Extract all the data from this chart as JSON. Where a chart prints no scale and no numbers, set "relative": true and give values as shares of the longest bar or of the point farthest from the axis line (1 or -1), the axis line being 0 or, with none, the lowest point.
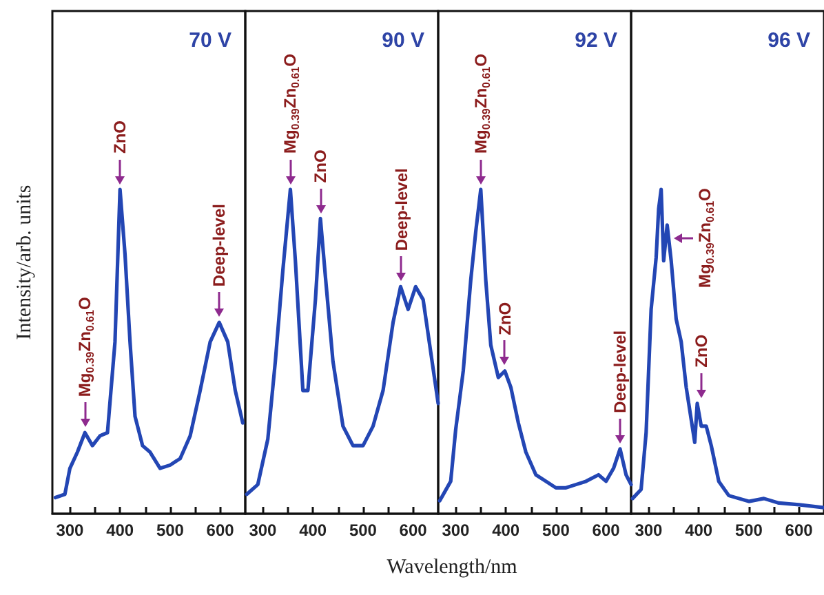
{
  "chart_data": [
    {
      "type": "line",
      "title": "70 V",
      "ylabel": "Intensity/arb. units",
      "relative": true,
      "marker": "none",
      "line_style": "solid",
      "xlim": [
        265,
        650
      ],
      "xticks": [
        300,
        {
          "value": 350,
          "label": null
        },
        400,
        {
          "value": 450,
          "label": null
        },
        500,
        {
          "value": 550,
          "label": null
        },
        600
      ],
      "x": [
        271,
        290,
        300,
        315,
        330,
        345,
        360,
        375,
        390,
        400,
        410,
        420,
        430,
        445,
        460,
        480,
        500,
        520,
        540,
        560,
        580,
        598,
        615,
        630,
        645
      ],
      "series": [
        {
          "color": "#2346b4",
          "values": [
            0.05,
            0.06,
            0.14,
            0.19,
            0.25,
            0.21,
            0.24,
            0.25,
            0.53,
            1,
            0.8,
            0.53,
            0.3,
            0.21,
            0.19,
            0.14,
            0.15,
            0.17,
            0.24,
            0.38,
            0.53,
            0.59,
            0.53,
            0.38,
            0.28
          ]
        }
      ],
      "annotations": [
        {
          "text": "Mg$_{0.39}$Zn$_{0.61}$O",
          "x": 330,
          "y": 0.25
        },
        {
          "text": "ZnO",
          "x": 400,
          "y": 1
        },
        {
          "text": "Deep-level",
          "x": 598,
          "y": 0.59
        }
      ]
    },
    {
      "type": "line",
      "title": "90 V",
      "xlabel": "Wavelength/nm",
      "relative": true,
      "marker": "none",
      "line_style": "solid",
      "xlim": [
        265,
        650
      ],
      "xticks": [
        300,
        {
          "value": 350,
          "label": null
        },
        400,
        {
          "value": 450,
          "label": null
        },
        500,
        {
          "value": 550,
          "label": null
        },
        600
      ],
      "x": [
        268,
        290,
        310,
        325,
        340,
        355,
        365,
        380,
        390,
        405,
        415,
        425,
        440,
        460,
        480,
        500,
        520,
        540,
        560,
        575,
        590,
        605,
        620,
        635,
        650
      ],
      "series": [
        {
          "color": "#2346b4",
          "values": [
            0.06,
            0.09,
            0.23,
            0.47,
            0.75,
            1,
            0.78,
            0.38,
            0.38,
            0.66,
            0.91,
            0.73,
            0.47,
            0.27,
            0.21,
            0.21,
            0.27,
            0.38,
            0.59,
            0.7,
            0.63,
            0.7,
            0.66,
            0.5,
            0.34
          ]
        }
      ],
      "annotations": [
        {
          "text": "Mg$_{0.39}$Zn$_{0.61}$O",
          "x": 355,
          "y": 1
        },
        {
          "text": "ZnO",
          "x": 415,
          "y": 0.91
        },
        {
          "text": "Deep-level",
          "x": 577,
          "y": 0.7
        }
      ]
    },
    {
      "type": "line",
      "title": "92 V",
      "relative": true,
      "marker": "none",
      "line_style": "solid",
      "xlim": [
        265,
        650
      ],
      "xticks": [
        300,
        {
          "value": 350,
          "label": null
        },
        400,
        {
          "value": 450,
          "label": null
        },
        500,
        {
          "value": 550,
          "label": null
        },
        600
      ],
      "x": [
        268,
        290,
        300,
        315,
        330,
        340,
        350,
        360,
        370,
        385,
        398,
        410,
        425,
        440,
        460,
        480,
        500,
        520,
        540,
        560,
        585,
        600,
        615,
        628,
        640,
        650
      ],
      "series": [
        {
          "color": "#2346b4",
          "values": [
            0.04,
            0.1,
            0.26,
            0.44,
            0.72,
            0.87,
            1,
            0.72,
            0.52,
            0.42,
            0.44,
            0.39,
            0.28,
            0.19,
            0.12,
            0.1,
            0.08,
            0.08,
            0.09,
            0.1,
            0.12,
            0.1,
            0.14,
            0.2,
            0.12,
            0.09
          ]
        }
      ],
      "annotations": [
        {
          "text": "Mg$_{0.39}$Zn$_{0.61}$O",
          "x": 350,
          "y": 1
        },
        {
          "text": "ZnO",
          "x": 398,
          "y": 0.44
        },
        {
          "text": "Deep-level",
          "x": 628,
          "y": 0.2
        }
      ]
    },
    {
      "type": "line",
      "title": "96 V",
      "relative": true,
      "marker": "none",
      "line_style": "solid",
      "xlim": [
        265,
        650
      ],
      "xticks": [
        300,
        {
          "value": 350,
          "label": null
        },
        400,
        {
          "value": 450,
          "label": null
        },
        500,
        {
          "value": 550,
          "label": null
        },
        600
      ],
      "x": [
        268,
        285,
        295,
        305,
        315,
        320,
        325,
        330,
        337,
        345,
        355,
        365,
        375,
        385,
        392,
        397,
        405,
        415,
        425,
        440,
        460,
        500,
        530,
        560,
        600,
        650
      ],
      "series": [
        {
          "color": "#2346b4",
          "values": [
            0.047,
            0.075,
            0.25,
            0.63,
            0.79,
            0.94,
            1.0,
            0.78,
            0.89,
            0.78,
            0.6,
            0.53,
            0.39,
            0.29,
            0.22,
            0.34,
            0.27,
            0.27,
            0.21,
            0.1,
            0.056,
            0.038,
            0.047,
            0.033,
            0.028,
            0.019
          ]
        }
      ],
      "annotations": [
        {
          "text": "Mg$_{0.39}$Zn$_{0.61}$O",
          "x": 340,
          "y": 0.85
        },
        {
          "text": "ZnO",
          "x": 405,
          "y": 0.34
        }
      ]
    }
  ]
}
